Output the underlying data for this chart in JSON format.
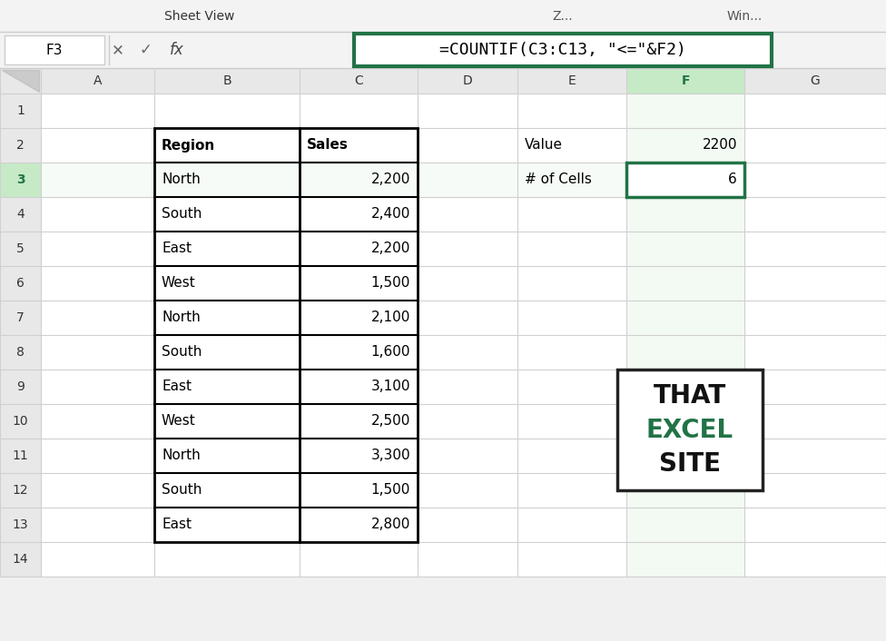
{
  "background_color": "#f0f0f0",
  "sheet_bg": "#ffffff",
  "col_headers": [
    "A",
    "B",
    "C",
    "D",
    "E",
    "F",
    "G"
  ],
  "row_headers": [
    "1",
    "2",
    "3",
    "4",
    "5",
    "6",
    "7",
    "8",
    "9",
    "10",
    "11",
    "12",
    "13",
    "14"
  ],
  "table_regions": [
    "North",
    "South",
    "East",
    "West",
    "North",
    "South",
    "East",
    "West",
    "North",
    "South",
    "East"
  ],
  "table_sales": [
    "2,200",
    "2,400",
    "2,200",
    "1,500",
    "2,100",
    "1,600",
    "3,100",
    "2,500",
    "3,300",
    "1,500",
    "2,800"
  ],
  "formula_bar_text": "=COUNTIF(C3:C13, \"<=\"&F2)",
  "cell_ref_text": "F3",
  "sheet_view_text": "Sheet View",
  "header_label_B": "Region",
  "header_label_C": "Sales",
  "label_value": "Value",
  "label_cells": "# of Cells",
  "value_number": "2200",
  "cells_result": "6",
  "that_text": "THAT",
  "excel_text": "EXCEL",
  "site_text": "SITE",
  "excel_color": "#217346",
  "formula_box_color": "#217346",
  "selected_col_color": "#c6e9c6",
  "selected_row_color": "#d4edda",
  "header_col_color": "#e8e8e8",
  "grid_color": "#d0d0d0",
  "table_border_color": "#000000",
  "cell_border_color": "#217346",
  "top_bar_color": "#f3f3f3",
  "row3_highlight": "#e6f2e6"
}
